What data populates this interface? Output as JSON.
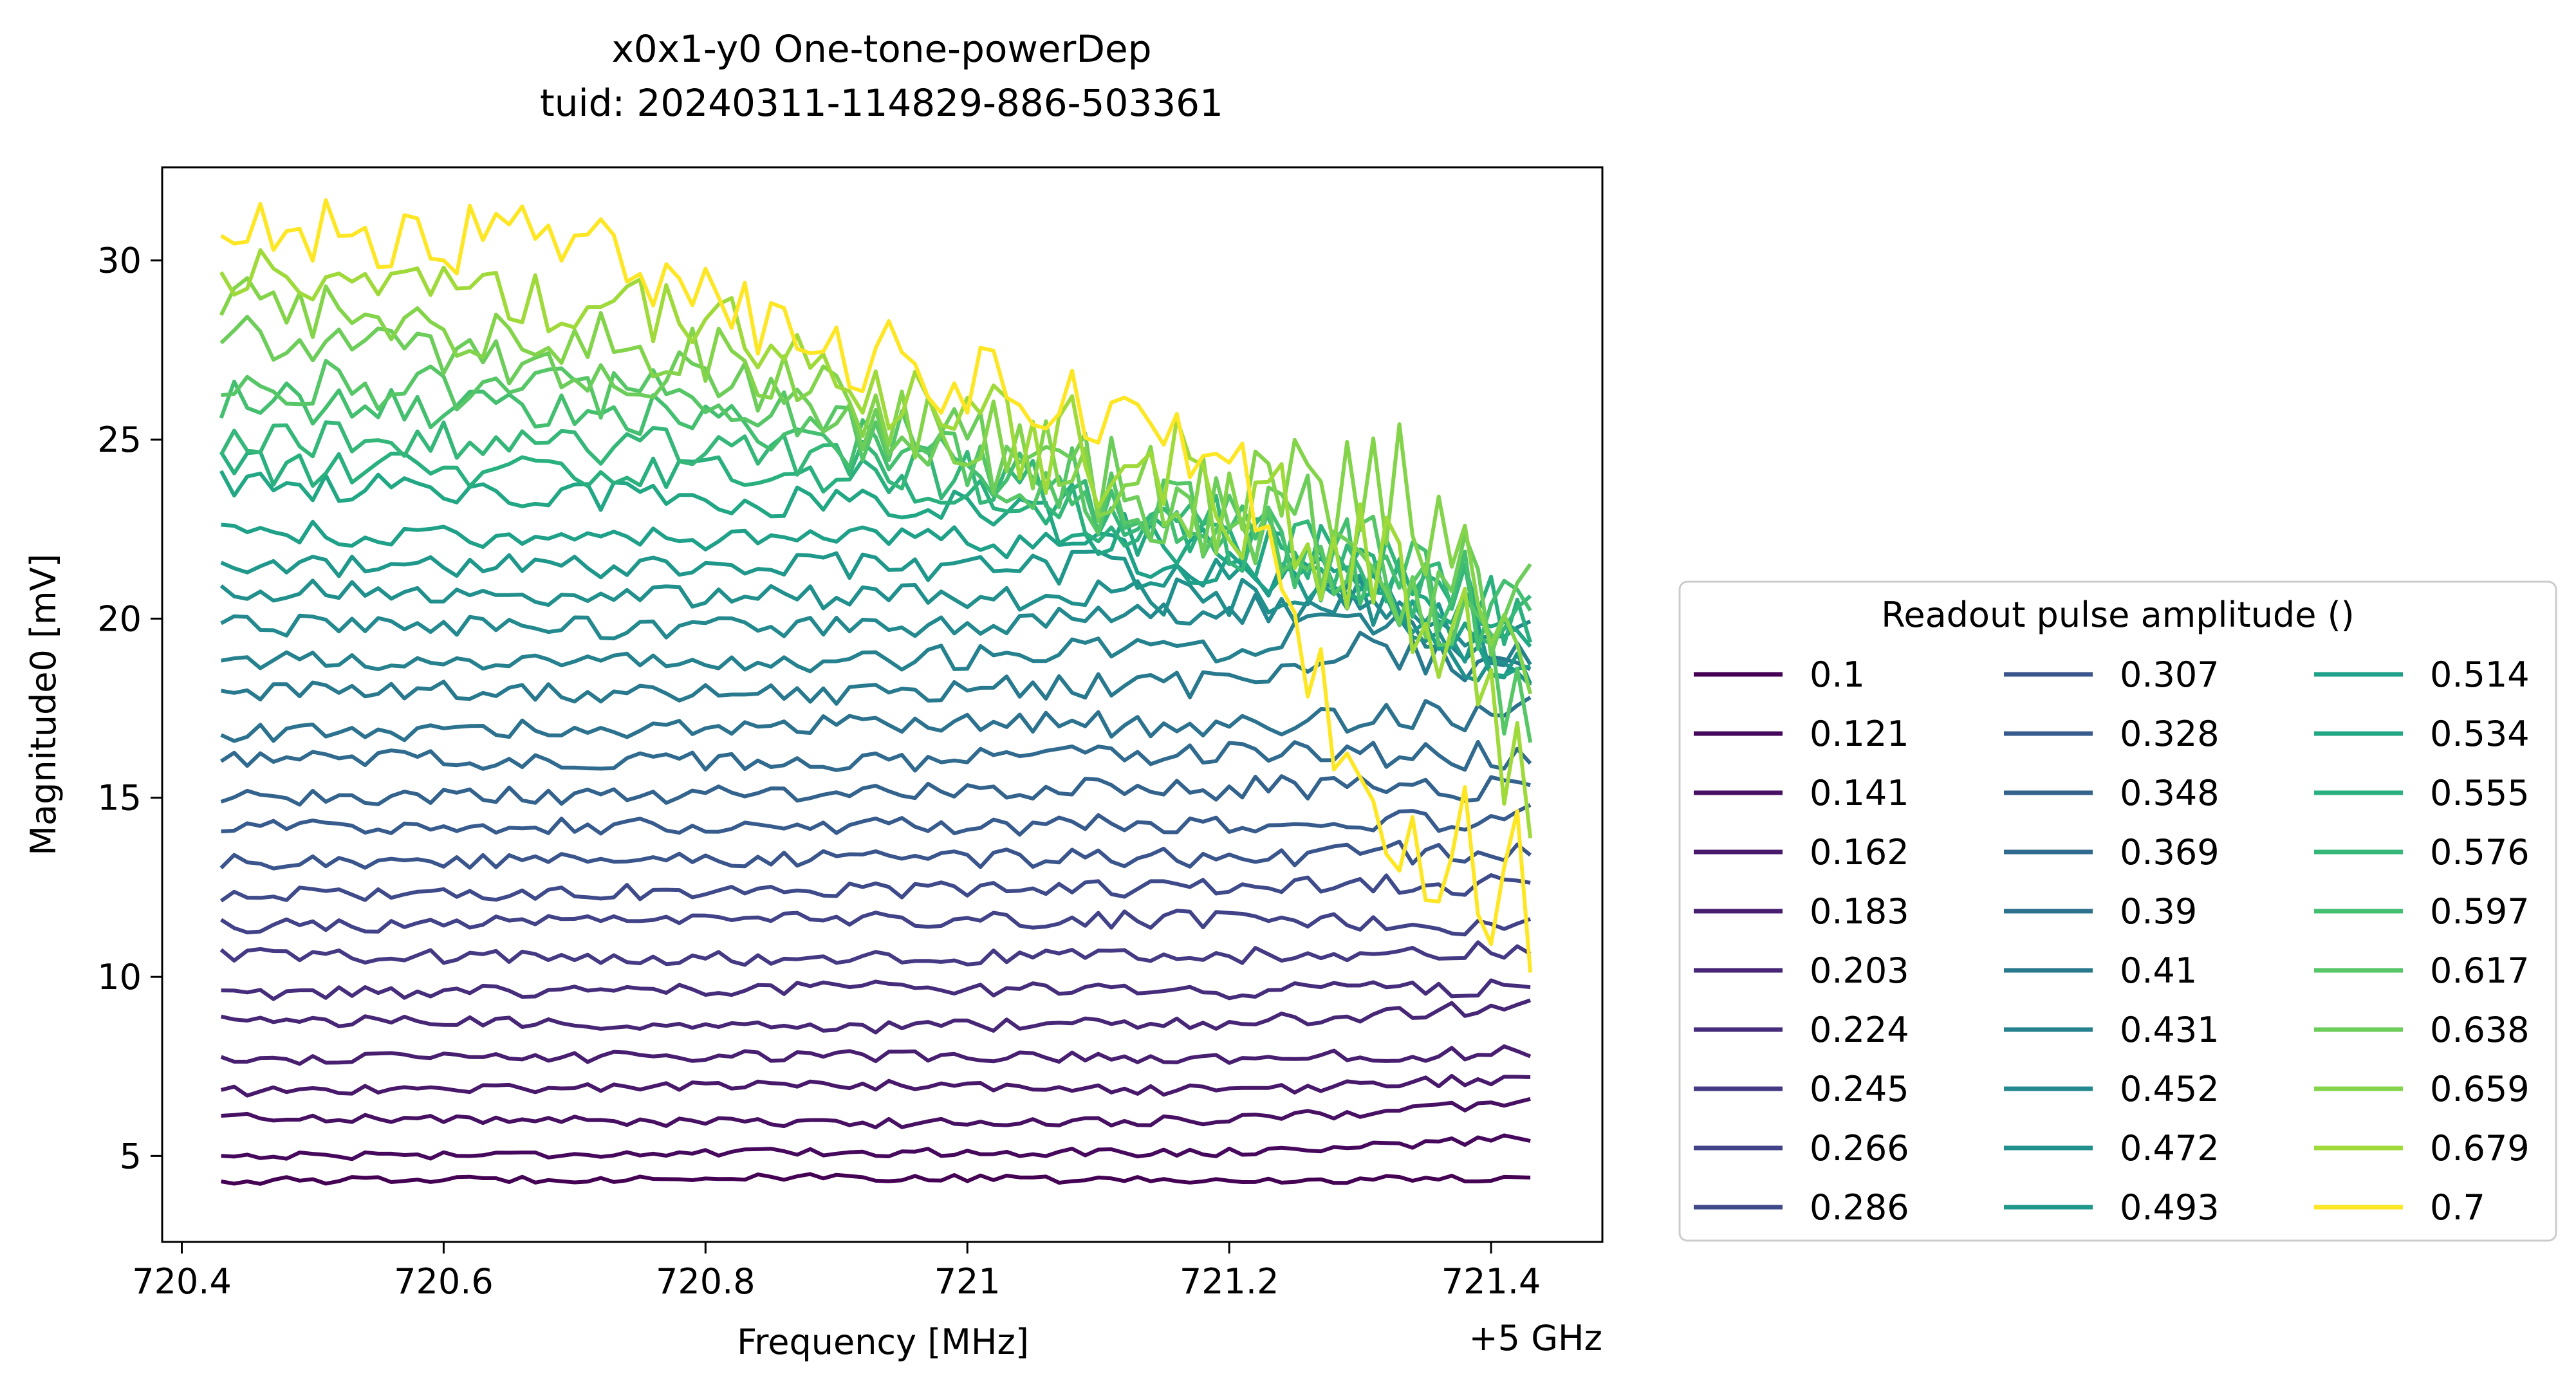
{
  "chart_data": {
    "type": "line",
    "title_line1": "x0x1-y0 One-tone-powerDep",
    "title_line2": "tuid: 20240311-114829-886-503361",
    "xlabel": "Frequency [MHz]",
    "ylabel": "Magnitude0 [mV]",
    "x_offset_label": "+5 GHz",
    "xlim": [
      720.385,
      721.485
    ],
    "ylim": [
      2.6,
      32.6
    ],
    "x_ticks": [
      {
        "value": 720.4,
        "label": "720.4"
      },
      {
        "value": 720.6,
        "label": "720.6"
      },
      {
        "value": 720.8,
        "label": "720.8"
      },
      {
        "value": 721.0,
        "label": "721"
      },
      {
        "value": 721.2,
        "label": "721.2"
      },
      {
        "value": 721.4,
        "label": "721.4"
      }
    ],
    "y_ticks": [
      {
        "value": 5,
        "label": "5"
      },
      {
        "value": 10,
        "label": "10"
      },
      {
        "value": 15,
        "label": "15"
      },
      {
        "value": 20,
        "label": "20"
      },
      {
        "value": 25,
        "label": "25"
      },
      {
        "value": 30,
        "label": "30"
      }
    ],
    "x_range": [
      720.43,
      721.43
    ],
    "n_points": 101,
    "grid": false,
    "legend": {
      "title": "Readout pulse amplitude ()",
      "placement": "outside-right",
      "columns": 3
    },
    "series": [
      {
        "name": "0.1",
        "color": "#440154",
        "profile": [
          [
            720.43,
            4.3
          ],
          [
            720.9,
            4.4
          ],
          [
            721.2,
            4.3
          ],
          [
            721.43,
            4.4
          ]
        ]
      },
      {
        "name": "0.121",
        "color": "#46085c",
        "profile": [
          [
            720.43,
            5.0
          ],
          [
            720.9,
            5.1
          ],
          [
            721.2,
            5.1
          ],
          [
            721.43,
            5.5
          ]
        ]
      },
      {
        "name": "0.141",
        "color": "#471063",
        "profile": [
          [
            720.43,
            6.1
          ],
          [
            720.9,
            5.9
          ],
          [
            721.2,
            6.0
          ],
          [
            721.43,
            6.5
          ]
        ]
      },
      {
        "name": "0.162",
        "color": "#48186a",
        "profile": [
          [
            720.43,
            6.8
          ],
          [
            720.9,
            7.0
          ],
          [
            721.2,
            6.8
          ],
          [
            721.43,
            7.2
          ]
        ]
      },
      {
        "name": "0.183",
        "color": "#481f70",
        "profile": [
          [
            720.43,
            7.7
          ],
          [
            720.9,
            7.8
          ],
          [
            721.2,
            7.7
          ],
          [
            721.43,
            7.9
          ]
        ]
      },
      {
        "name": "0.203",
        "color": "#472676",
        "profile": [
          [
            720.43,
            8.8
          ],
          [
            720.9,
            8.6
          ],
          [
            721.2,
            8.7
          ],
          [
            721.43,
            9.2
          ]
        ]
      },
      {
        "name": "0.224",
        "color": "#462d7b",
        "profile": [
          [
            720.43,
            9.5
          ],
          [
            720.9,
            9.7
          ],
          [
            721.2,
            9.6
          ],
          [
            721.43,
            9.7
          ]
        ]
      },
      {
        "name": "0.245",
        "color": "#443983",
        "profile": [
          [
            720.43,
            10.6
          ],
          [
            720.9,
            10.5
          ],
          [
            721.2,
            10.6
          ],
          [
            721.43,
            10.8
          ]
        ]
      },
      {
        "name": "0.266",
        "color": "#414287",
        "profile": [
          [
            720.43,
            11.4
          ],
          [
            720.9,
            11.6
          ],
          [
            721.2,
            11.6
          ],
          [
            721.43,
            11.4
          ]
        ]
      },
      {
        "name": "0.286",
        "color": "#3e4a89",
        "profile": [
          [
            720.43,
            12.3
          ],
          [
            720.9,
            12.4
          ],
          [
            721.2,
            12.5
          ],
          [
            721.43,
            12.6
          ]
        ]
      },
      {
        "name": "0.307",
        "color": "#3a548c",
        "profile": [
          [
            720.43,
            13.2
          ],
          [
            720.9,
            13.3
          ],
          [
            721.2,
            13.3
          ],
          [
            721.43,
            13.6
          ]
        ]
      },
      {
        "name": "0.328",
        "color": "#375b8d",
        "profile": [
          [
            720.43,
            14.2
          ],
          [
            720.9,
            14.2
          ],
          [
            721.2,
            14.3
          ],
          [
            721.43,
            14.5
          ]
        ]
      },
      {
        "name": "0.348",
        "color": "#33638d",
        "profile": [
          [
            720.43,
            15.0
          ],
          [
            720.9,
            15.1
          ],
          [
            721.2,
            15.3
          ],
          [
            721.43,
            15.3
          ]
        ]
      },
      {
        "name": "0.369",
        "color": "#306a8e",
        "profile": [
          [
            720.43,
            16.1
          ],
          [
            720.9,
            16.0
          ],
          [
            721.2,
            16.2
          ],
          [
            721.43,
            16.2
          ]
        ]
      },
      {
        "name": "0.39",
        "color": "#2c728e",
        "profile": [
          [
            720.43,
            16.8
          ],
          [
            720.9,
            17.0
          ],
          [
            721.2,
            17.1
          ],
          [
            721.43,
            17.4
          ]
        ]
      },
      {
        "name": "0.41",
        "color": "#29798e",
        "profile": [
          [
            720.43,
            18.0
          ],
          [
            720.9,
            17.9
          ],
          [
            721.2,
            18.2
          ],
          [
            721.3,
            19.2
          ],
          [
            721.43,
            18.5
          ]
        ]
      },
      {
        "name": "0.431",
        "color": "#26818e",
        "profile": [
          [
            720.43,
            18.8
          ],
          [
            720.9,
            18.8
          ],
          [
            721.2,
            19.2
          ],
          [
            721.3,
            20.0
          ],
          [
            721.43,
            19.0
          ]
        ]
      },
      {
        "name": "0.452",
        "color": "#23898e",
        "profile": [
          [
            720.43,
            19.8
          ],
          [
            720.9,
            19.7
          ],
          [
            721.1,
            19.9
          ],
          [
            721.3,
            20.5
          ],
          [
            721.43,
            19.4
          ]
        ]
      },
      {
        "name": "0.472",
        "color": "#21908d",
        "profile": [
          [
            720.43,
            20.8
          ],
          [
            720.9,
            20.6
          ],
          [
            721.1,
            20.6
          ],
          [
            721.3,
            20.6
          ],
          [
            721.43,
            18.0
          ]
        ]
      },
      {
        "name": "0.493",
        "color": "#1f978b",
        "profile": [
          [
            720.43,
            21.4
          ],
          [
            720.9,
            21.5
          ],
          [
            721.1,
            21.4
          ],
          [
            721.3,
            21.0
          ],
          [
            721.43,
            18.5
          ]
        ]
      },
      {
        "name": "0.514",
        "color": "#1fa088",
        "profile": [
          [
            720.43,
            22.4
          ],
          [
            720.9,
            22.2
          ],
          [
            721.0,
            22.3
          ],
          [
            721.3,
            21.0
          ],
          [
            721.43,
            18.0
          ]
        ]
      },
      {
        "name": "0.534",
        "color": "#22a785",
        "profile": [
          [
            720.43,
            23.8
          ],
          [
            720.9,
            23.2
          ],
          [
            721.0,
            23.0
          ],
          [
            721.3,
            21.3
          ],
          [
            721.43,
            19.0
          ]
        ]
      },
      {
        "name": "0.555",
        "color": "#2ab07f",
        "profile": [
          [
            720.43,
            24.2
          ],
          [
            720.9,
            24.0
          ],
          [
            721.0,
            23.6
          ],
          [
            721.3,
            21.5
          ],
          [
            721.43,
            19.8
          ]
        ]
      },
      {
        "name": "0.576",
        "color": "#35b779",
        "profile": [
          [
            720.43,
            25.1
          ],
          [
            720.8,
            24.8
          ],
          [
            721.0,
            24.0
          ],
          [
            721.3,
            21.6
          ],
          [
            721.43,
            19.4
          ]
        ]
      },
      {
        "name": "0.597",
        "color": "#44bf70",
        "profile": [
          [
            720.43,
            26.1
          ],
          [
            720.8,
            25.6
          ],
          [
            721.0,
            24.3
          ],
          [
            721.3,
            21.5
          ],
          [
            721.43,
            19.8
          ]
        ]
      },
      {
        "name": "0.617",
        "color": "#56c667",
        "profile": [
          [
            720.43,
            26.7
          ],
          [
            720.8,
            26.2
          ],
          [
            721.0,
            24.6
          ],
          [
            721.2,
            22.3
          ],
          [
            721.3,
            21.8
          ],
          [
            721.43,
            17.2
          ]
        ]
      },
      {
        "name": "0.638",
        "color": "#6ccd5a",
        "profile": [
          [
            720.43,
            28.1
          ],
          [
            720.8,
            26.8
          ],
          [
            721.0,
            24.8
          ],
          [
            721.2,
            23.0
          ],
          [
            721.3,
            22.0
          ],
          [
            721.43,
            19.6
          ]
        ]
      },
      {
        "name": "0.659",
        "color": "#84d44b",
        "profile": [
          [
            720.43,
            28.8
          ],
          [
            720.8,
            27.4
          ],
          [
            721.0,
            25.1
          ],
          [
            721.2,
            23.2
          ],
          [
            721.33,
            24.0
          ],
          [
            721.43,
            17.2
          ]
        ]
      },
      {
        "name": "0.679",
        "color": "#9fda3a",
        "profile": [
          [
            720.43,
            29.9
          ],
          [
            720.8,
            28.4
          ],
          [
            721.0,
            25.6
          ],
          [
            721.2,
            23.4
          ],
          [
            721.35,
            21.0
          ],
          [
            721.43,
            14.7
          ]
        ]
      },
      {
        "name": "0.7",
        "color": "#fde725",
        "profile": [
          [
            720.43,
            30.8
          ],
          [
            720.7,
            30.5
          ],
          [
            720.85,
            28.2
          ],
          [
            721.0,
            26.4
          ],
          [
            721.1,
            26.4
          ],
          [
            721.2,
            24.0
          ],
          [
            721.28,
            18.0
          ],
          [
            721.32,
            13.0
          ],
          [
            721.43,
            12.8
          ]
        ]
      }
    ]
  }
}
